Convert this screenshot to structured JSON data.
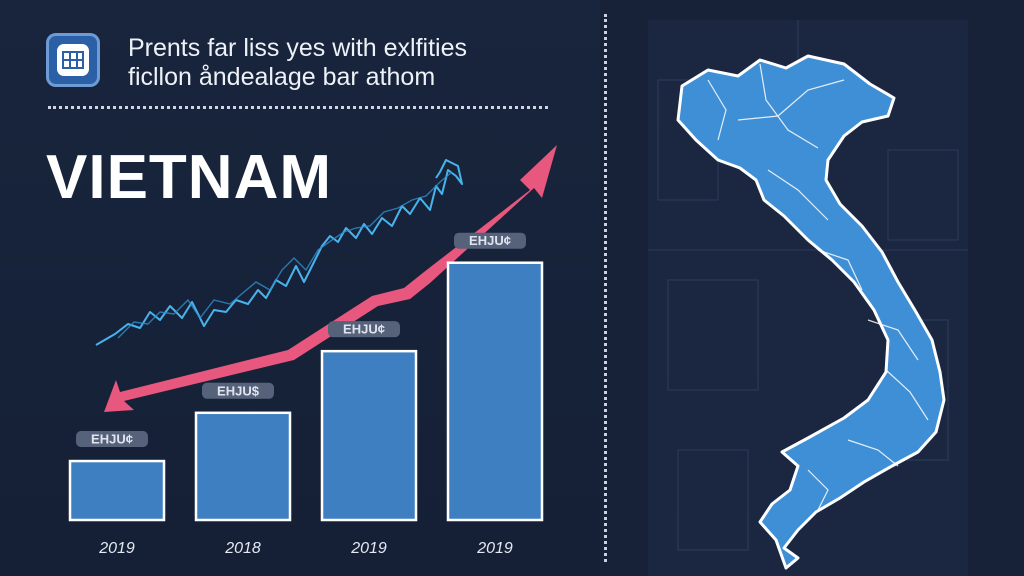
{
  "header": {
    "subtitle_line1": "Prents far liss yes with exlfities",
    "subtitle_line2": "ficllon åndealage bar athom",
    "title": "VIETNAM"
  },
  "colors": {
    "bar_fill": "#3e7fc1",
    "bar_border": "#ffffff",
    "arrow": "#e8577e",
    "trend_line": "#47b4ee",
    "map_fill": "#3f8fd6",
    "background": "#172238"
  },
  "chart_data": {
    "type": "bar",
    "categories": [
      "2019",
      "2018",
      "2019",
      "2019"
    ],
    "values": [
      22,
      40,
      63,
      96
    ],
    "bar_labels": [
      "ЕНЈU¢",
      "ЕНЈU$",
      "ЕНЈU¢",
      "ЕНЈU¢"
    ],
    "ylim": [
      0,
      100
    ],
    "title": "VIETNAM",
    "xlabel": "",
    "ylabel": "",
    "overlays": [
      "rising trend arrow",
      "noisy trend line"
    ]
  },
  "map": {
    "label": "map of Vietnam",
    "icon": "vietnam-map-icon"
  }
}
